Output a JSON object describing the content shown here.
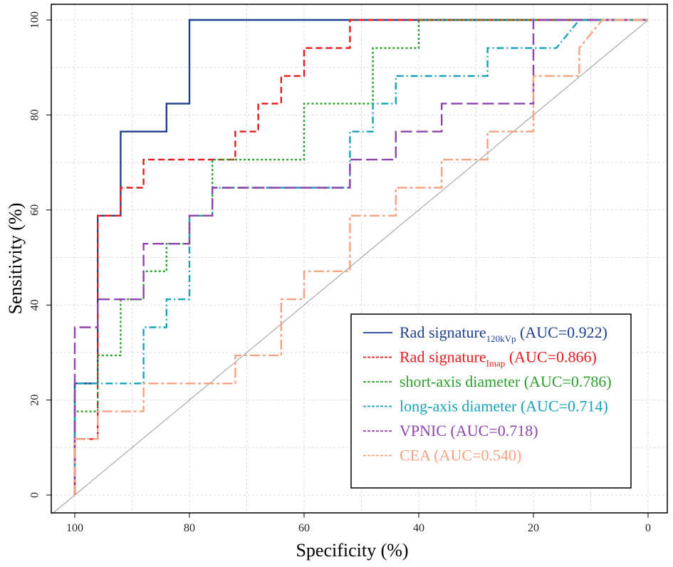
{
  "chart_data": {
    "type": "line",
    "xlabel": "Specificity (%)",
    "ylabel": "Sensitivity (%)",
    "xlim": [
      100,
      0
    ],
    "ylim": [
      0,
      100
    ],
    "x_ticks": [
      "100",
      "80",
      "60",
      "40",
      "20",
      "0"
    ],
    "y_ticks": [
      "0",
      "20",
      "40",
      "60",
      "80",
      "100"
    ],
    "grid": true,
    "legend_position": "bottom-right",
    "series": [
      {
        "name": "Rad signature",
        "subscript": "120kVp",
        "auc": "(AUC=0.922)",
        "color": "#1f3f8f",
        "dash": "solid",
        "points": [
          [
            100,
            0
          ],
          [
            100,
            23.5
          ],
          [
            96,
            23.5
          ],
          [
            96,
            58.8
          ],
          [
            92,
            58.8
          ],
          [
            92,
            76.5
          ],
          [
            84,
            76.5
          ],
          [
            84,
            82.4
          ],
          [
            80,
            82.4
          ],
          [
            80,
            100
          ],
          [
            0,
            100
          ]
        ]
      },
      {
        "name": "Rad signature",
        "subscript": "Imap",
        "auc": "(AUC=0.866)",
        "color": "#e41a1c",
        "dash": "dashed",
        "points": [
          [
            100,
            0
          ],
          [
            100,
            11.8
          ],
          [
            96,
            11.8
          ],
          [
            96,
            58.8
          ],
          [
            92,
            58.8
          ],
          [
            92,
            64.7
          ],
          [
            88,
            64.7
          ],
          [
            88,
            70.6
          ],
          [
            72,
            70.6
          ],
          [
            72,
            76.5
          ],
          [
            68,
            76.5
          ],
          [
            68,
            82.4
          ],
          [
            64,
            82.4
          ],
          [
            64,
            88.2
          ],
          [
            60,
            88.2
          ],
          [
            60,
            94.1
          ],
          [
            52,
            94.1
          ],
          [
            52,
            100
          ],
          [
            0,
            100
          ]
        ]
      },
      {
        "name": "short-axis diameter",
        "subscript": "",
        "auc": "(AUC=0.786)",
        "color": "#2ca02c",
        "dash": "dotted",
        "points": [
          [
            100,
            0
          ],
          [
            100,
            17.6
          ],
          [
            96,
            17.6
          ],
          [
            96,
            29.4
          ],
          [
            92,
            29.4
          ],
          [
            92,
            41.2
          ],
          [
            88,
            41.2
          ],
          [
            88,
            47.1
          ],
          [
            84,
            47.1
          ],
          [
            84,
            52.9
          ],
          [
            80,
            52.9
          ],
          [
            80,
            58.8
          ],
          [
            76,
            58.8
          ],
          [
            76,
            70.6
          ],
          [
            60,
            70.6
          ],
          [
            60,
            82.4
          ],
          [
            48,
            82.4
          ],
          [
            48,
            94.1
          ],
          [
            40,
            94.1
          ],
          [
            40,
            100
          ],
          [
            0,
            100
          ]
        ]
      },
      {
        "name": "long-axis diameter",
        "subscript": "",
        "auc": "(AUC=0.714)",
        "color": "#17a2b8",
        "dash": "dashdot",
        "points": [
          [
            100,
            0
          ],
          [
            100,
            23.5
          ],
          [
            88,
            23.5
          ],
          [
            88,
            35.3
          ],
          [
            84,
            35.3
          ],
          [
            84,
            41.2
          ],
          [
            80,
            41.2
          ],
          [
            80,
            58.8
          ],
          [
            76,
            58.8
          ],
          [
            76,
            64.7
          ],
          [
            52,
            64.7
          ],
          [
            52,
            76.5
          ],
          [
            48,
            76.5
          ],
          [
            48,
            82.4
          ],
          [
            44,
            82.4
          ],
          [
            44,
            88.2
          ],
          [
            28,
            88.2
          ],
          [
            28,
            94.1
          ],
          [
            16,
            94.1
          ],
          [
            12,
            100
          ],
          [
            0,
            100
          ]
        ]
      },
      {
        "name": "VPNIC",
        "subscript": "",
        "auc": "(AUC=0.718)",
        "color": "#8e44ad",
        "dash": "longdash",
        "points": [
          [
            100,
            0
          ],
          [
            100,
            35.3
          ],
          [
            96,
            35.3
          ],
          [
            96,
            41.2
          ],
          [
            88,
            41.2
          ],
          [
            88,
            52.9
          ],
          [
            80,
            52.9
          ],
          [
            80,
            58.8
          ],
          [
            76,
            58.8
          ],
          [
            76,
            64.7
          ],
          [
            52,
            64.7
          ],
          [
            52,
            70.6
          ],
          [
            44,
            70.6
          ],
          [
            44,
            76.5
          ],
          [
            36,
            76.5
          ],
          [
            36,
            82.4
          ],
          [
            20,
            82.4
          ],
          [
            20,
            100
          ],
          [
            0,
            100
          ]
        ]
      },
      {
        "name": "CEA",
        "subscript": "",
        "auc": "(AUC=0.540)",
        "color": "#f5a282",
        "dash": "twodash",
        "points": [
          [
            100,
            0
          ],
          [
            100,
            11.8
          ],
          [
            96,
            11.8
          ],
          [
            96,
            17.6
          ],
          [
            88,
            17.6
          ],
          [
            88,
            23.5
          ],
          [
            72,
            23.5
          ],
          [
            72,
            29.4
          ],
          [
            64,
            29.4
          ],
          [
            64,
            41.2
          ],
          [
            60,
            41.2
          ],
          [
            60,
            47.1
          ],
          [
            52,
            47.1
          ],
          [
            52,
            58.8
          ],
          [
            44,
            58.8
          ],
          [
            44,
            64.7
          ],
          [
            36,
            64.7
          ],
          [
            36,
            70.6
          ],
          [
            28,
            70.6
          ],
          [
            28,
            76.5
          ],
          [
            20,
            76.5
          ],
          [
            20,
            88.2
          ],
          [
            12,
            88.2
          ],
          [
            12,
            94.1
          ],
          [
            8,
            100
          ],
          [
            0,
            100
          ]
        ]
      }
    ],
    "reference_line": {
      "from": [
        100,
        0
      ],
      "to": [
        0,
        100
      ],
      "color": "#9a9a9a"
    }
  }
}
